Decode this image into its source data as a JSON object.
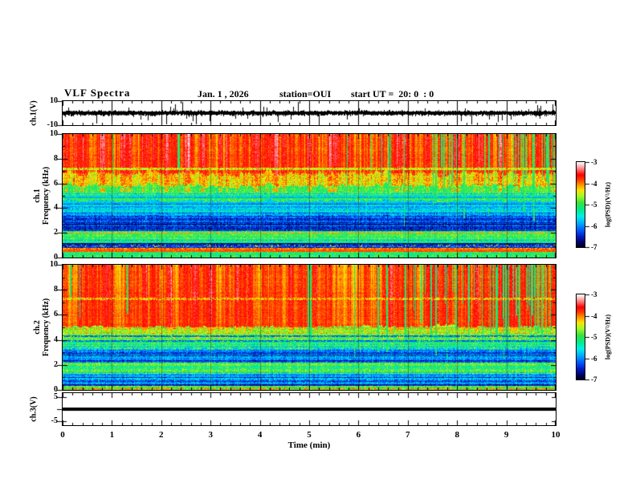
{
  "header": {
    "title": "VLF Spectra",
    "date": "Jan. 1 , 2026",
    "station": "station=OUI",
    "start_ut": "start UT =  20: 0  : 0"
  },
  "x_axis": {
    "label": "Time (min)",
    "tick_labels": [
      "0",
      "1",
      "2",
      "3",
      "4",
      "5",
      "6",
      "7",
      "8",
      "9",
      "10"
    ],
    "range": [
      0,
      10
    ]
  },
  "colorbar": {
    "label": "log(PSD)(V²/Hz)",
    "tick_labels": [
      "-3",
      "-4",
      "-5",
      "-6",
      "-7"
    ],
    "range": [
      -7,
      -3
    ]
  },
  "colormap_stops": [
    [
      0.0,
      0,
      0,
      30
    ],
    [
      0.05,
      0,
      0,
      95
    ],
    [
      0.12,
      0,
      25,
      190
    ],
    [
      0.2,
      0,
      90,
      255
    ],
    [
      0.28,
      0,
      170,
      255
    ],
    [
      0.36,
      0,
      240,
      230
    ],
    [
      0.44,
      0,
      235,
      140
    ],
    [
      0.52,
      60,
      225,
      60
    ],
    [
      0.6,
      160,
      250,
      40
    ],
    [
      0.67,
      255,
      225,
      0
    ],
    [
      0.73,
      255,
      150,
      0
    ],
    [
      0.79,
      255,
      60,
      0
    ],
    [
      0.85,
      255,
      0,
      0
    ],
    [
      0.91,
      255,
      110,
      110
    ],
    [
      0.96,
      255,
      195,
      195
    ],
    [
      1.0,
      255,
      255,
      255
    ]
  ],
  "chart_data": [
    {
      "type": "line",
      "id": "ch1_wave",
      "ylabel": "ch.1(V)",
      "ylim": [
        -10,
        10
      ],
      "ytick_labels": [
        "10",
        "-10"
      ],
      "xlim": [
        0,
        10
      ],
      "seed": 7,
      "grid_every_min": 1,
      "description": "Broadband noise waveform centered on 0 V, typical amplitude ±2 V with impulsive spikes reaching ±9 V"
    },
    {
      "type": "heatmap",
      "id": "ch1_spec",
      "ylabel_channel": "ch.1",
      "ylabel_freq": "Frequency (kHz)",
      "ylim": [
        0,
        10
      ],
      "ytick_labels": [
        "10",
        "8",
        "6",
        "4",
        "2",
        "0"
      ],
      "xlim": [
        0,
        10
      ],
      "zlim": [
        -7,
        -3
      ],
      "seed": 42,
      "bands": [
        [
          6.8,
          10,
          -3.75
        ],
        [
          5.8,
          6.8,
          -4.25
        ],
        [
          4.6,
          5.8,
          -4.95
        ],
        [
          3.4,
          4.6,
          -5.7
        ],
        [
          2.15,
          3.4,
          -6.3
        ],
        [
          1.2,
          2.15,
          -5.0
        ],
        [
          0.78,
          1.2,
          -6.35
        ],
        [
          0.45,
          0.78,
          -4.15
        ],
        [
          0,
          0.45,
          -5.15
        ]
      ],
      "hlines": [
        [
          7.2,
          0.1,
          -4.5,
          0.85
        ],
        [
          4.9,
          0.07,
          -5.9,
          0.7
        ],
        [
          4.45,
          0.07,
          -5.9,
          0.7
        ],
        [
          4.1,
          0.07,
          -6.0,
          0.6
        ],
        [
          2.05,
          0.09,
          -4.15,
          0.55
        ],
        [
          0.95,
          0.12,
          -4.3,
          0.15
        ],
        [
          0.6,
          0.1,
          -3.9,
          0.95
        ]
      ],
      "streak": {
        "fmin": 5.6,
        "ext_fmin": 5.3,
        "amp": 0.5
      },
      "dropout": {
        "base": 0.012,
        "ramp_start": 4.5,
        "ramp_max": 0.14,
        "v": -5.05,
        "depth": [
          2.5,
          7.5
        ]
      },
      "noise": {
        "split_f": 6.8,
        "top": 0.3,
        "low": 0.7
      },
      "stripes": {
        "fmax": 5.2,
        "amp": 0.5,
        "dark_p": 0.18,
        "dark_v": 0.55
      },
      "description": "Spectrogram: intense (red, ~-3.8) broadband band 7-10 kHz with vertical dropouts, green/cyan 3.5-5.8 kHz, dark blue 2.2-3.4 kHz, narrow intense lines near 2.05, 0.6 kHz"
    },
    {
      "type": "heatmap",
      "id": "ch2_spec",
      "ylabel_channel": "ch.2",
      "ylabel_freq": "Frequency (kHz)",
      "ylim": [
        0,
        10
      ],
      "ytick_labels": [
        "10",
        "8",
        "6",
        "4",
        "2",
        "0"
      ],
      "xlim": [
        0,
        10
      ],
      "zlim": [
        -7,
        -3
      ],
      "seed": 1337,
      "bands": [
        [
          5.0,
          10,
          -3.8
        ],
        [
          4.2,
          5.0,
          -4.5
        ],
        [
          3.3,
          4.2,
          -5.0
        ],
        [
          2.2,
          3.3,
          -5.9
        ],
        [
          1.3,
          2.2,
          -4.95
        ],
        [
          0.35,
          1.3,
          -5.9
        ],
        [
          0,
          0.35,
          -4.85
        ]
      ],
      "hlines": [
        [
          7.3,
          0.1,
          -4.4,
          0.6
        ],
        [
          4.35,
          0.08,
          -6.2,
          0.75
        ],
        [
          3.95,
          0.08,
          -6.2,
          0.7
        ],
        [
          3.0,
          0.07,
          -6.5,
          0.5
        ],
        [
          1.75,
          0.07,
          -5.6,
          0.4
        ],
        [
          0.8,
          0.08,
          -6.4,
          0.4
        ],
        [
          0.12,
          0.1,
          -4.0,
          0.45
        ]
      ],
      "streak": {
        "fmin": 5.0,
        "ext_fmin": 4.7,
        "amp": 0.45
      },
      "dropout": {
        "base": 0.02,
        "ramp_start": 5.5,
        "ramp_max": 0.2,
        "v": -5.1,
        "depth": [
          2,
          8
        ]
      },
      "noise": {
        "split_f": 5.0,
        "top": 0.3,
        "low": 0.7
      },
      "stripes": {
        "fmax": 5.0,
        "amp": 0.5,
        "dark_p": 0.18,
        "dark_v": 0.55
      },
      "description": "Spectrogram: intense (red) band 5-10 kHz with green vertical dropouts (dense after min 6), mixed green/cyan/blue below 5 kHz with dark horizontal lines near 4.35, 3.95 kHz"
    },
    {
      "type": "line",
      "id": "ch3_wave",
      "ylabel": "ch.3(V)",
      "ylim": [
        -5,
        5
      ],
      "ytick_labels": [
        "5",
        "-5"
      ],
      "xlim": [
        0,
        10
      ],
      "constant_v": 0,
      "description": "Flat thick line at 0 V for the whole 10 minutes"
    }
  ]
}
